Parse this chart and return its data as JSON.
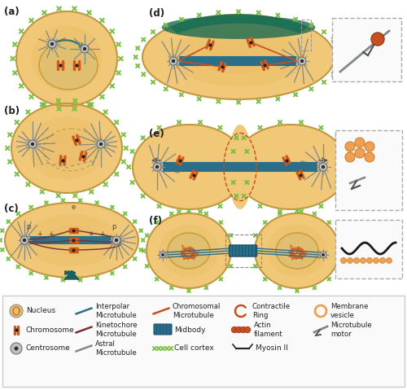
{
  "bg_color": "#ffffff",
  "cell_bg": "#f0c878",
  "cell_bg_inner": "#e8b860",
  "nucleus_color": "#e0c070",
  "nucleus_border": "#c8a040",
  "cortex_color": "#78c040",
  "cortex_border": "#50a020",
  "cell_border": "#c09840",
  "mt_interpolar": "#2a6e8a",
  "mt_kinet": "#7a3030",
  "mt_astral": "#808888",
  "mt_chrom": "#c85020",
  "chromosome_color": "#d05818",
  "centrosome_fill": "#c0c0c0",
  "centrosome_inner": "#303030",
  "midbody_color": "#2a6e8a",
  "midbody_stripe": "#1a4e6a",
  "cortex_top": "#1a6a50",
  "inset_bg": "#fafafa",
  "inset_border": "#aaaaaa",
  "legend_bg": "#fafafa",
  "legend_border": "#cccccc",
  "label_color": "#222222",
  "panel_labels": [
    "(a)",
    "(b)",
    "(c)",
    "(d)",
    "(e)",
    "(f)"
  ],
  "figsize": [
    5.0,
    4.79
  ],
  "dpi": 100
}
